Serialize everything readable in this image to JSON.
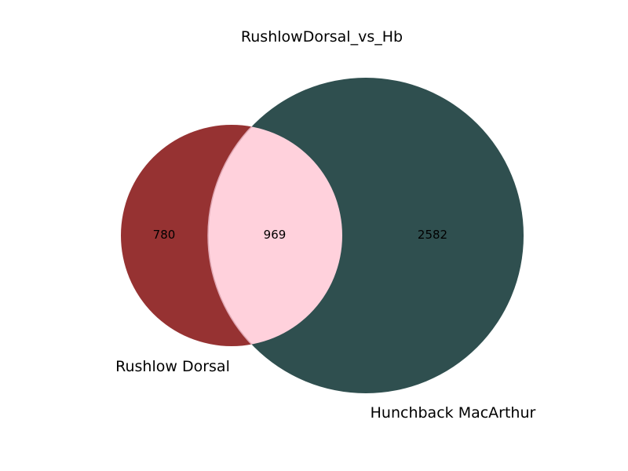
{
  "chart_data": {
    "type": "venn",
    "title": "RushlowDorsal_vs_Hb",
    "sets": [
      {
        "name": "Rushlow Dorsal",
        "color": "#963232"
      },
      {
        "name": "Hunchback MacArthur",
        "color": "#2f4f4f"
      }
    ],
    "intersection_color": "#ffd1dc",
    "regions": {
      "only_first": "780",
      "both": "969",
      "only_second": "2582"
    }
  }
}
